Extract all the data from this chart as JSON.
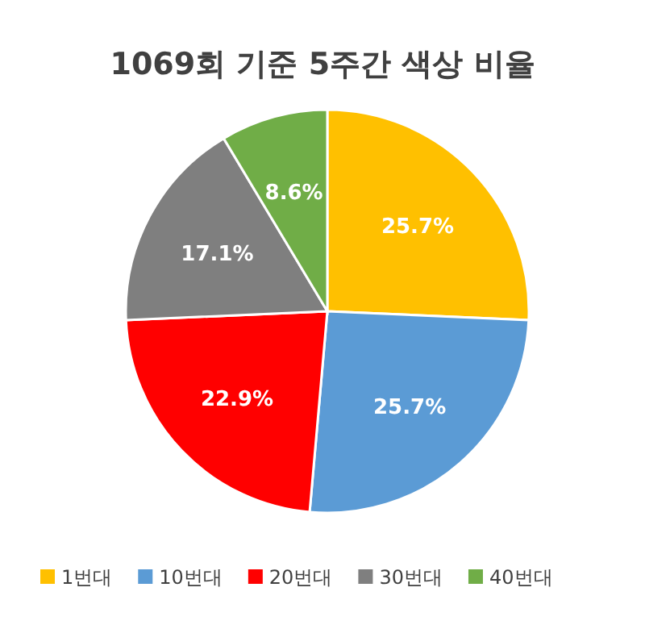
{
  "chart_data": {
    "type": "pie",
    "title": "1069회 기준 5주간 색상 비율",
    "categories": [
      "1번대",
      "10번대",
      "20번대",
      "30번대",
      "40번대"
    ],
    "values": [
      25.7,
      25.7,
      22.9,
      17.1,
      8.6
    ],
    "colors": [
      "#ffc000",
      "#5b9bd5",
      "#ff0000",
      "#7f7f7f",
      "#70ad47"
    ],
    "value_labels": [
      "25.7%",
      "25.7%",
      "22.9%",
      "17.1%",
      "8.6%"
    ],
    "legend": "bottom"
  }
}
